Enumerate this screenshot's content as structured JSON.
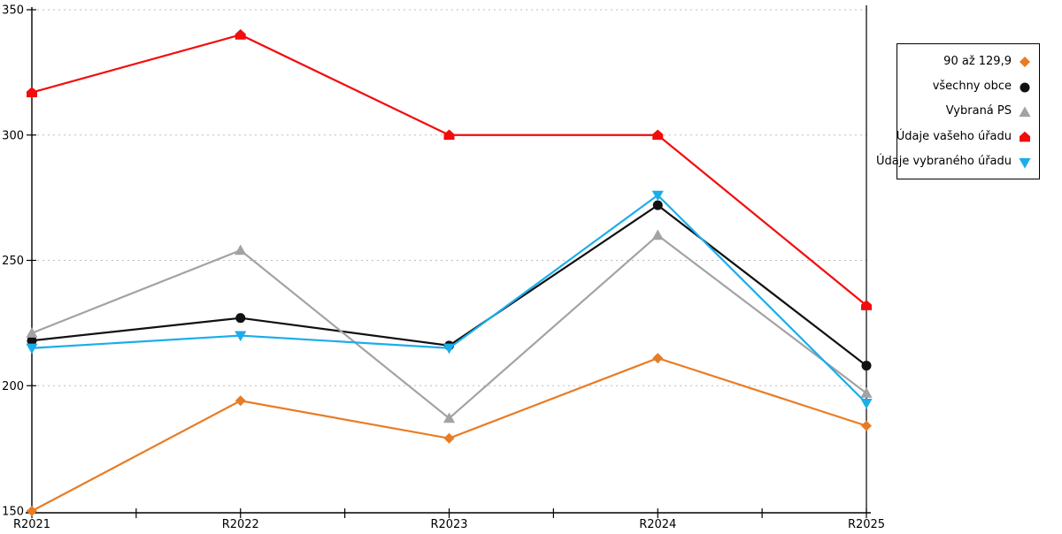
{
  "chart_data": {
    "type": "line",
    "categories": [
      "R2021",
      "R2022",
      "R2023",
      "R2024",
      "R2025"
    ],
    "series": [
      {
        "name": "90 až 129,9",
        "marker": "diamond",
        "color": "#e87c25",
        "values": [
          150,
          194,
          179,
          211,
          184
        ]
      },
      {
        "name": "všechny obce",
        "marker": "circle",
        "color": "#111111",
        "values": [
          218,
          227,
          216,
          272,
          208
        ]
      },
      {
        "name": "Vybraná PS",
        "marker": "triangle-up",
        "color": "#a3a3a3",
        "values": [
          221,
          254,
          187,
          260,
          197
        ]
      },
      {
        "name": "Údaje vašeho úřadu",
        "marker": "pentagon",
        "color": "#f20c0c",
        "values": [
          317,
          340,
          300,
          300,
          232
        ]
      },
      {
        "name": "Údaje vybraného úřadu",
        "marker": "triangle-down",
        "color": "#1badea",
        "values": [
          215,
          220,
          215,
          276,
          193
        ]
      }
    ],
    "title": "",
    "xlabel": "",
    "ylabel": "",
    "ylim": [
      150,
      350
    ],
    "yticks": [
      150,
      200,
      250,
      300,
      350
    ],
    "grid": "horizontal-dashed",
    "gridline_color": "#bdbdbd",
    "axis_color": "#000000",
    "minor_x_ticks_between_categories": true,
    "legend_position": "top-right"
  }
}
